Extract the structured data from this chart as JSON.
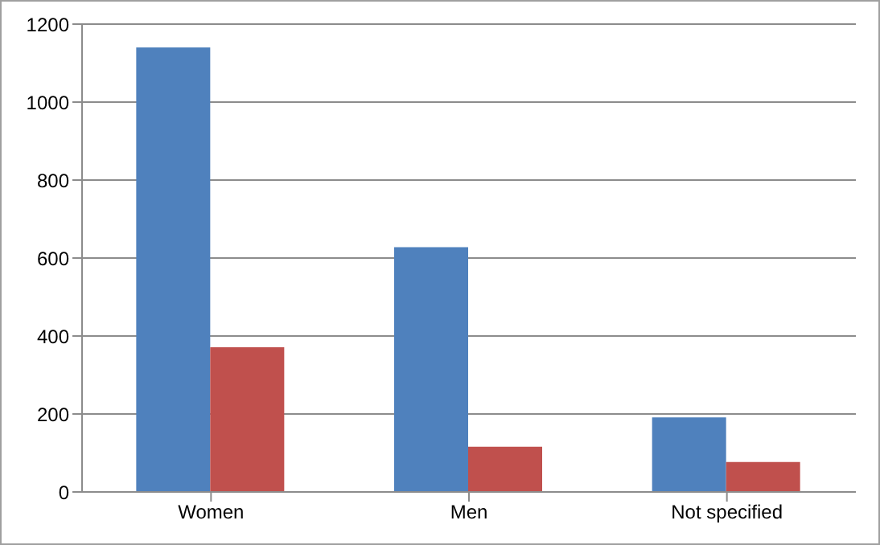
{
  "chart_data": {
    "type": "bar",
    "categories": [
      "Women",
      "Men",
      "Not specified"
    ],
    "series": [
      {
        "color": "#4f81bd",
        "values": [
          1140,
          628,
          191
        ]
      },
      {
        "color": "#c0504d",
        "values": [
          371,
          116,
          77
        ]
      }
    ],
    "ylim": [
      0,
      1200
    ],
    "yticks": [
      0,
      200,
      400,
      600,
      800,
      1000,
      1200
    ],
    "grid": "y",
    "legend": false
  }
}
